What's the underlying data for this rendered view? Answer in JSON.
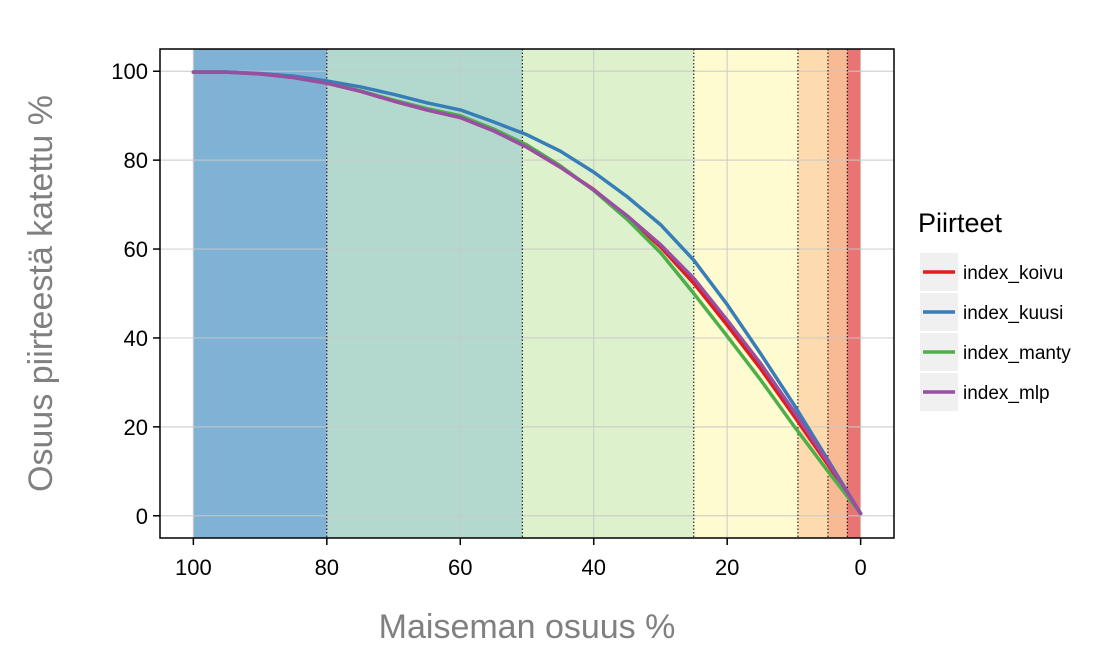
{
  "chart_data": {
    "type": "line",
    "xlabel": "Maiseman osuus %",
    "ylabel": "Osuus piirteestä katettu %",
    "x_reversed": true,
    "xlim": [
      -5,
      105
    ],
    "ylim": [
      -5,
      105
    ],
    "x_ticks": [
      100,
      80,
      60,
      40,
      20,
      0
    ],
    "y_ticks": [
      0,
      20,
      40,
      60,
      80,
      100
    ],
    "grid": true,
    "legend": {
      "title": "Piirteet",
      "position": "right"
    },
    "bands": [
      {
        "from": 100,
        "to": 80,
        "color": "#7fb2d5"
      },
      {
        "from": 80,
        "to": 50.7,
        "color": "#b3d9ce"
      },
      {
        "from": 50.7,
        "to": 25,
        "color": "#ddf1cd"
      },
      {
        "from": 25,
        "to": 9.4,
        "color": "#fefbd0"
      },
      {
        "from": 9.4,
        "to": 4.9,
        "color": "#fddbae"
      },
      {
        "from": 4.9,
        "to": 2,
        "color": "#f8b995"
      },
      {
        "from": 2,
        "to": 0,
        "color": "#e97474"
      }
    ],
    "band_boundaries": [
      80,
      50.7,
      25,
      9.4,
      4.9,
      2
    ],
    "series": [
      {
        "name": "index_koivu",
        "color": "#e41a1c",
        "x": [
          100,
          95,
          90,
          85,
          80,
          75,
          70,
          65,
          60,
          55,
          50,
          45,
          40,
          35,
          30,
          25,
          20,
          15,
          10,
          5,
          0
        ],
        "y": [
          99.8,
          99.8,
          99.4,
          98.6,
          97.3,
          95.5,
          93.3,
          91.3,
          89.6,
          86.6,
          82.9,
          78.4,
          73.4,
          67.3,
          60.5,
          52.3,
          42.9,
          33.1,
          22.5,
          11.7,
          0.5
        ]
      },
      {
        "name": "index_kuusi",
        "color": "#377eb8",
        "x": [
          100,
          95,
          90,
          85,
          80,
          75,
          70,
          65,
          60,
          55,
          50,
          45,
          40,
          35,
          30,
          25,
          20,
          15,
          10,
          5,
          0
        ],
        "y": [
          99.8,
          99.8,
          99.5,
          98.9,
          97.8,
          96.5,
          94.8,
          92.9,
          91.3,
          88.6,
          85.7,
          82.0,
          77.3,
          71.8,
          65.5,
          57.5,
          47.5,
          36.5,
          25.0,
          12.8,
          0.5
        ]
      },
      {
        "name": "index_manty",
        "color": "#4daf4a",
        "x": [
          100,
          95,
          90,
          85,
          80,
          75,
          70,
          65,
          60,
          55,
          50,
          45,
          40,
          35,
          30,
          25,
          20,
          15,
          10,
          5,
          0
        ],
        "y": [
          99.8,
          99.8,
          99.4,
          98.6,
          97.3,
          95.6,
          93.5,
          91.6,
          90.0,
          87.0,
          83.4,
          78.7,
          73.2,
          66.7,
          59.2,
          50.0,
          40.4,
          30.6,
          20.2,
          10.2,
          0.5
        ]
      },
      {
        "name": "index_mlp",
        "color": "#984ea3",
        "x": [
          100,
          95,
          90,
          85,
          80,
          75,
          70,
          65,
          60,
          55,
          50,
          45,
          40,
          35,
          30,
          25,
          20,
          15,
          10,
          5,
          0
        ],
        "y": [
          99.8,
          99.8,
          99.4,
          98.6,
          97.3,
          95.5,
          93.3,
          91.3,
          89.6,
          86.6,
          82.9,
          78.4,
          73.3,
          67.5,
          61.0,
          53.4,
          44.0,
          34.3,
          23.5,
          12.3,
          0.5
        ]
      }
    ]
  }
}
